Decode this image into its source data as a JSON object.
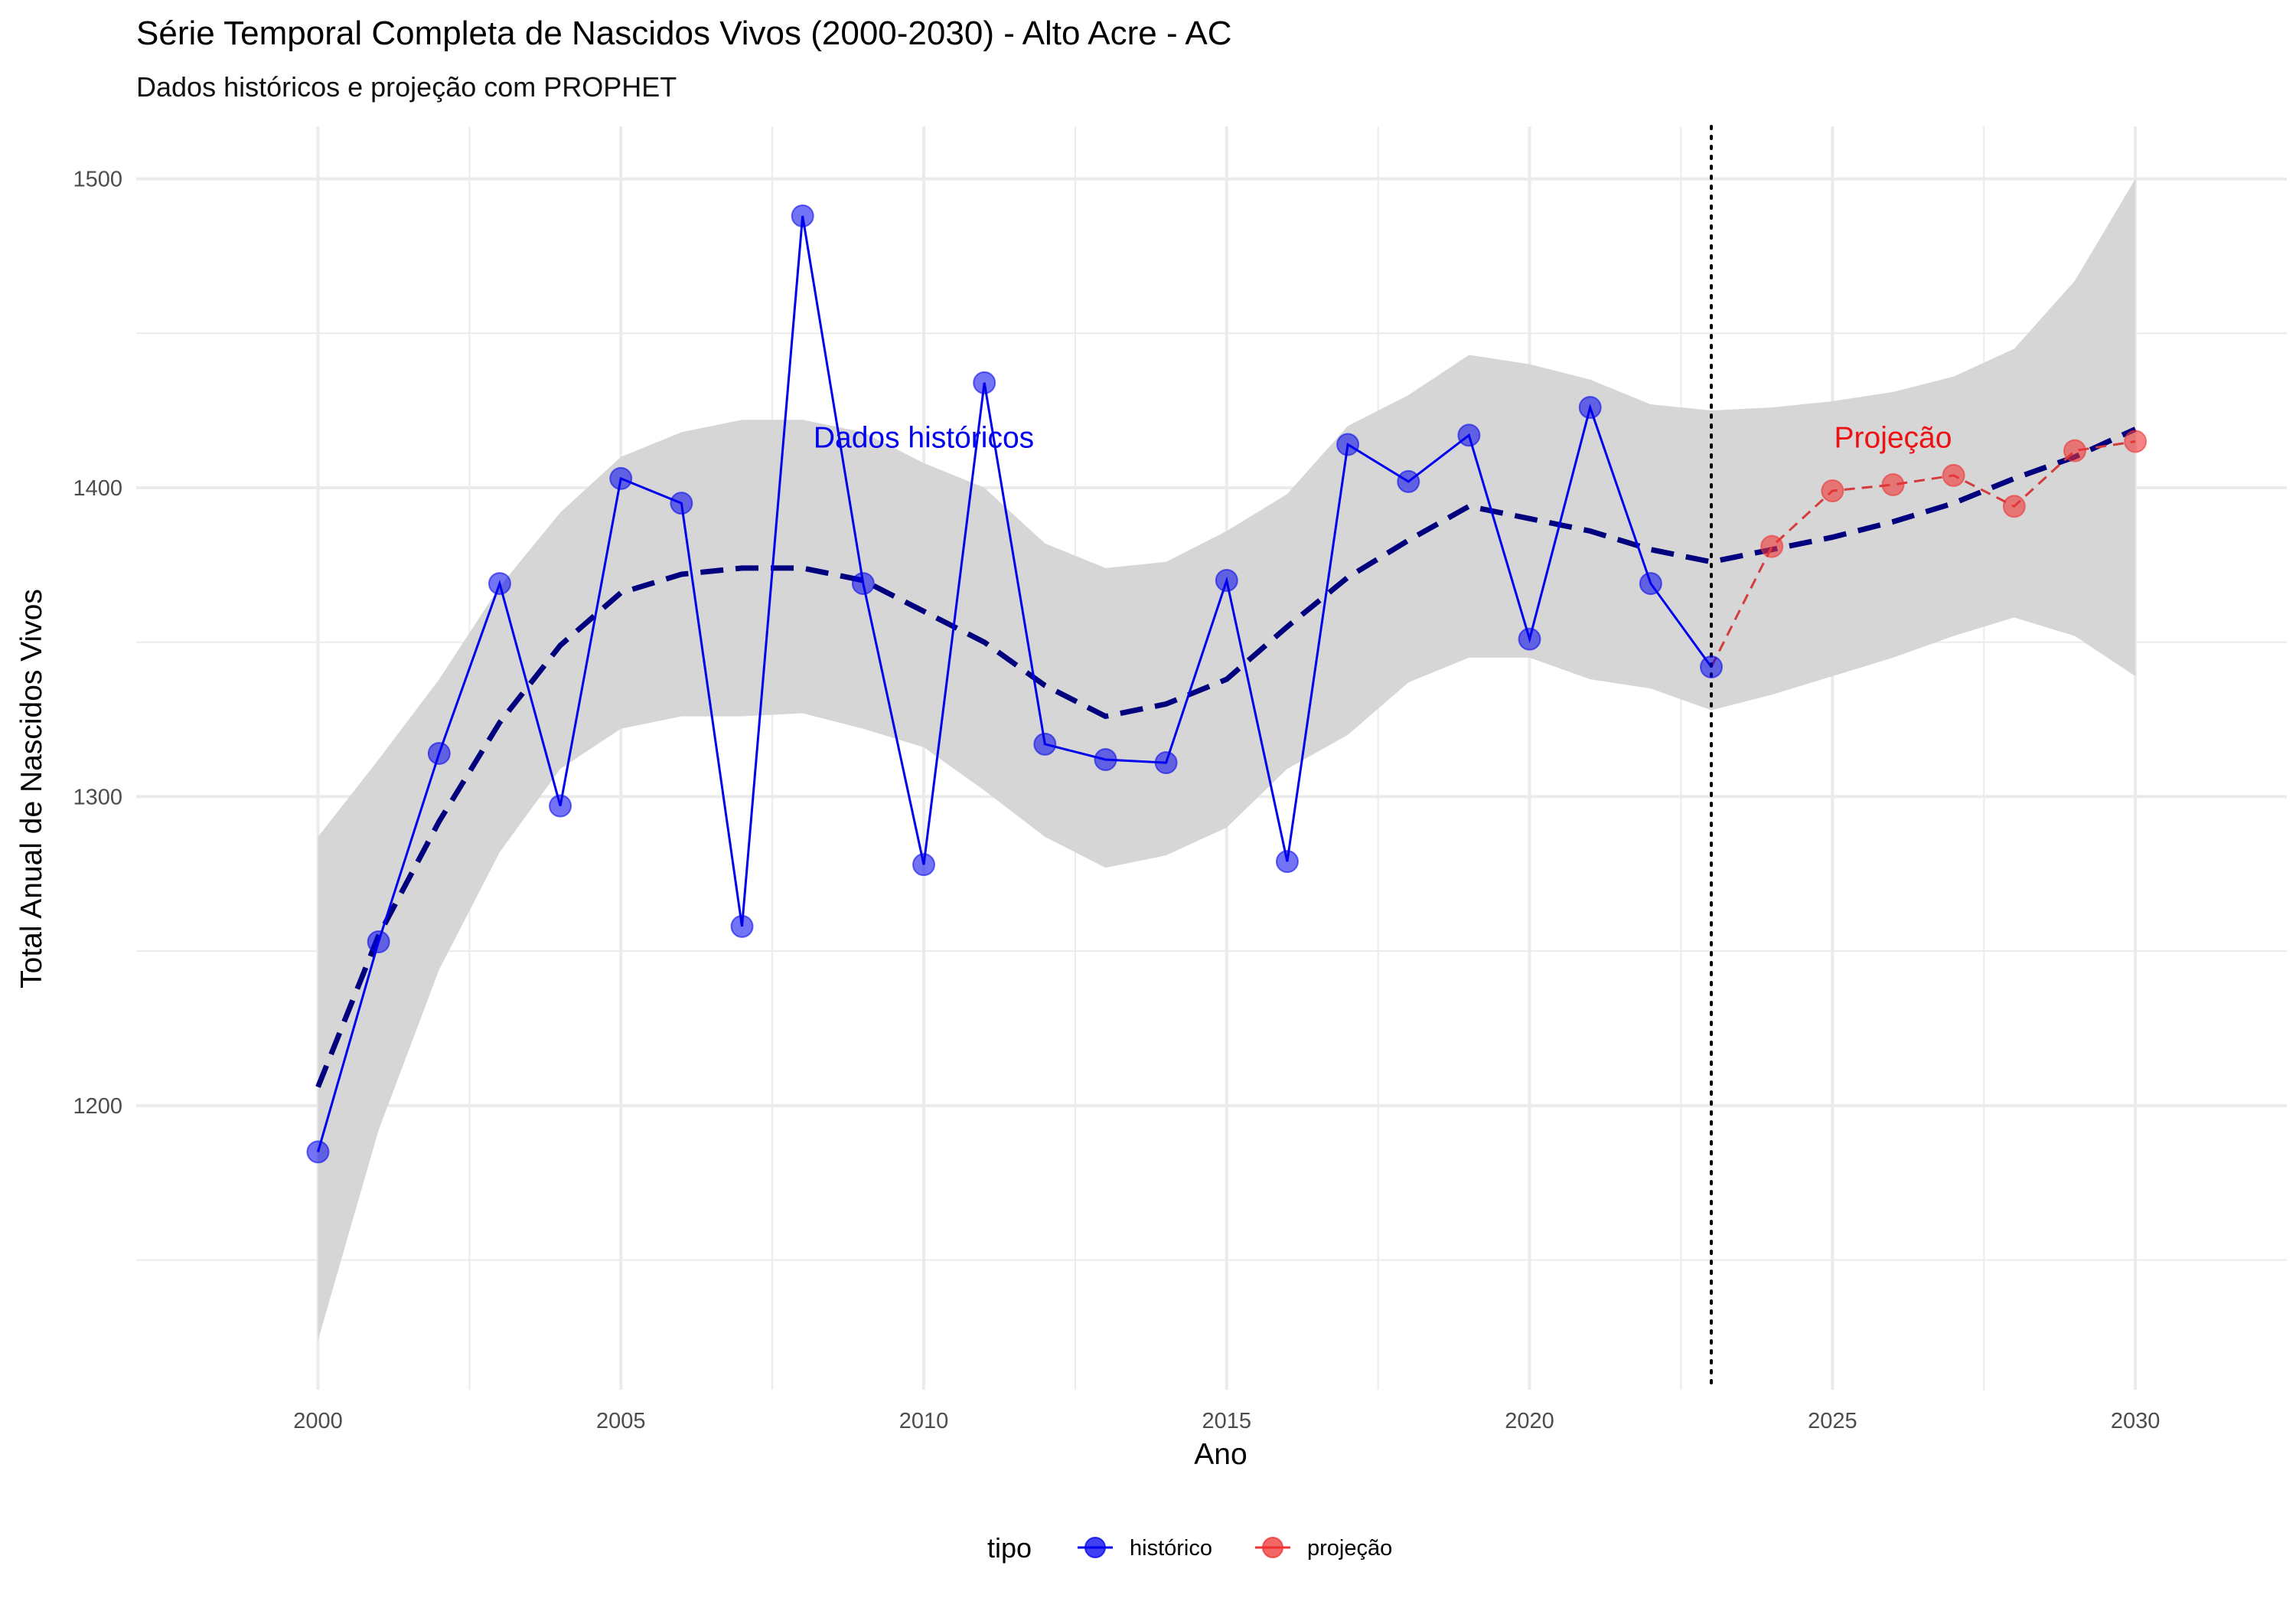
{
  "chart_data": {
    "type": "line",
    "title": "Série Temporal Completa de Nascidos Vivos (2000-2030) -  Alto Acre - AC",
    "subtitle": "Dados históricos e projeção com PROPHET",
    "xlabel": "Ano",
    "ylabel": "Total Anual de Nascidos Vivos",
    "xlim": [
      1997,
      2032.5
    ],
    "ylim": [
      1108,
      1517
    ],
    "x_ticks": [
      2000,
      2005,
      2010,
      2015,
      2020,
      2025,
      2030
    ],
    "x_tick_labels": [
      "2000",
      "2005",
      "2010",
      "2015",
      "2020",
      "2025",
      "2030"
    ],
    "y_ticks": [
      1200,
      1300,
      1400,
      1500
    ],
    "y_tick_labels": [
      "1200",
      "1300",
      "1400",
      "1500"
    ],
    "y_minor_ticks": [
      1150,
      1250,
      1350,
      1450
    ],
    "x_minor_ticks": [
      2002.5,
      2007.5,
      2012.5,
      2017.5,
      2022.5,
      2027.5
    ],
    "grid": true,
    "legend_position": "bottom",
    "legend_title": "tipo",
    "vline_x": 2023,
    "colors": {
      "historico": "#0000ee",
      "projecao": "#ee3333",
      "trend": "#00007f",
      "band": "#d6d6d6",
      "grid": "#ebebeb"
    },
    "series": [
      {
        "name": "histórico",
        "x": [
          2000,
          2001,
          2002,
          2003,
          2004,
          2005,
          2006,
          2007,
          2008,
          2009,
          2010,
          2011,
          2012,
          2013,
          2014,
          2015,
          2016,
          2017,
          2018,
          2019,
          2020,
          2021,
          2022,
          2023
        ],
        "values": [
          1185,
          1253,
          1314,
          1369,
          1297,
          1403,
          1395,
          1258,
          1488,
          1369,
          1278,
          1434,
          1317,
          1312,
          1311,
          1370,
          1279,
          1414,
          1402,
          1417,
          1351,
          1426,
          1369,
          1342
        ]
      },
      {
        "name": "projeção",
        "x": [
          2023,
          2024,
          2025,
          2026,
          2027,
          2028,
          2029,
          2030
        ],
        "values": [
          1342,
          1381,
          1399,
          1401,
          1404,
          1394,
          1412,
          1415
        ]
      }
    ],
    "trend": {
      "x": [
        2000,
        2001,
        2002,
        2003,
        2004,
        2005,
        2006,
        2007,
        2008,
        2009,
        2010,
        2011,
        2012,
        2013,
        2014,
        2015,
        2016,
        2017,
        2018,
        2019,
        2020,
        2021,
        2022,
        2023,
        2024,
        2025,
        2026,
        2027,
        2028,
        2029,
        2030
      ],
      "values": [
        1206,
        1255,
        1292,
        1324,
        1349,
        1366,
        1372,
        1374,
        1374,
        1370,
        1360,
        1350,
        1336,
        1326,
        1330,
        1338,
        1355,
        1371,
        1383,
        1394,
        1390,
        1386,
        1380,
        1376,
        1380,
        1384,
        1389,
        1395,
        1403,
        1410,
        1419
      ]
    },
    "band": {
      "x": [
        2000,
        2001,
        2002,
        2003,
        2004,
        2005,
        2006,
        2007,
        2008,
        2009,
        2010,
        2011,
        2012,
        2013,
        2014,
        2015,
        2016,
        2017,
        2018,
        2019,
        2020,
        2021,
        2022,
        2023,
        2024,
        2025,
        2026,
        2027,
        2028,
        2029,
        2030
      ],
      "upper": [
        1287,
        1312,
        1338,
        1368,
        1392,
        1410,
        1418,
        1422,
        1422,
        1418,
        1408,
        1400,
        1382,
        1374,
        1376,
        1386,
        1398,
        1420,
        1430,
        1443,
        1440,
        1435,
        1427,
        1425,
        1426,
        1428,
        1431,
        1436,
        1445,
        1467,
        1500
      ],
      "lower": [
        1124,
        1192,
        1244,
        1282,
        1309,
        1322,
        1326,
        1326,
        1327,
        1322,
        1316,
        1302,
        1287,
        1277,
        1281,
        1290,
        1309,
        1320,
        1337,
        1345,
        1345,
        1338,
        1335,
        1328,
        1333,
        1339,
        1345,
        1352,
        1358,
        1352,
        1339
      ]
    },
    "annotations": [
      {
        "text": "Dados históricos",
        "x": 2010,
        "y": 1413,
        "color": "#0000ee"
      },
      {
        "text": "Projeção",
        "x": 2026,
        "y": 1413,
        "color": "#ee1111"
      }
    ]
  }
}
